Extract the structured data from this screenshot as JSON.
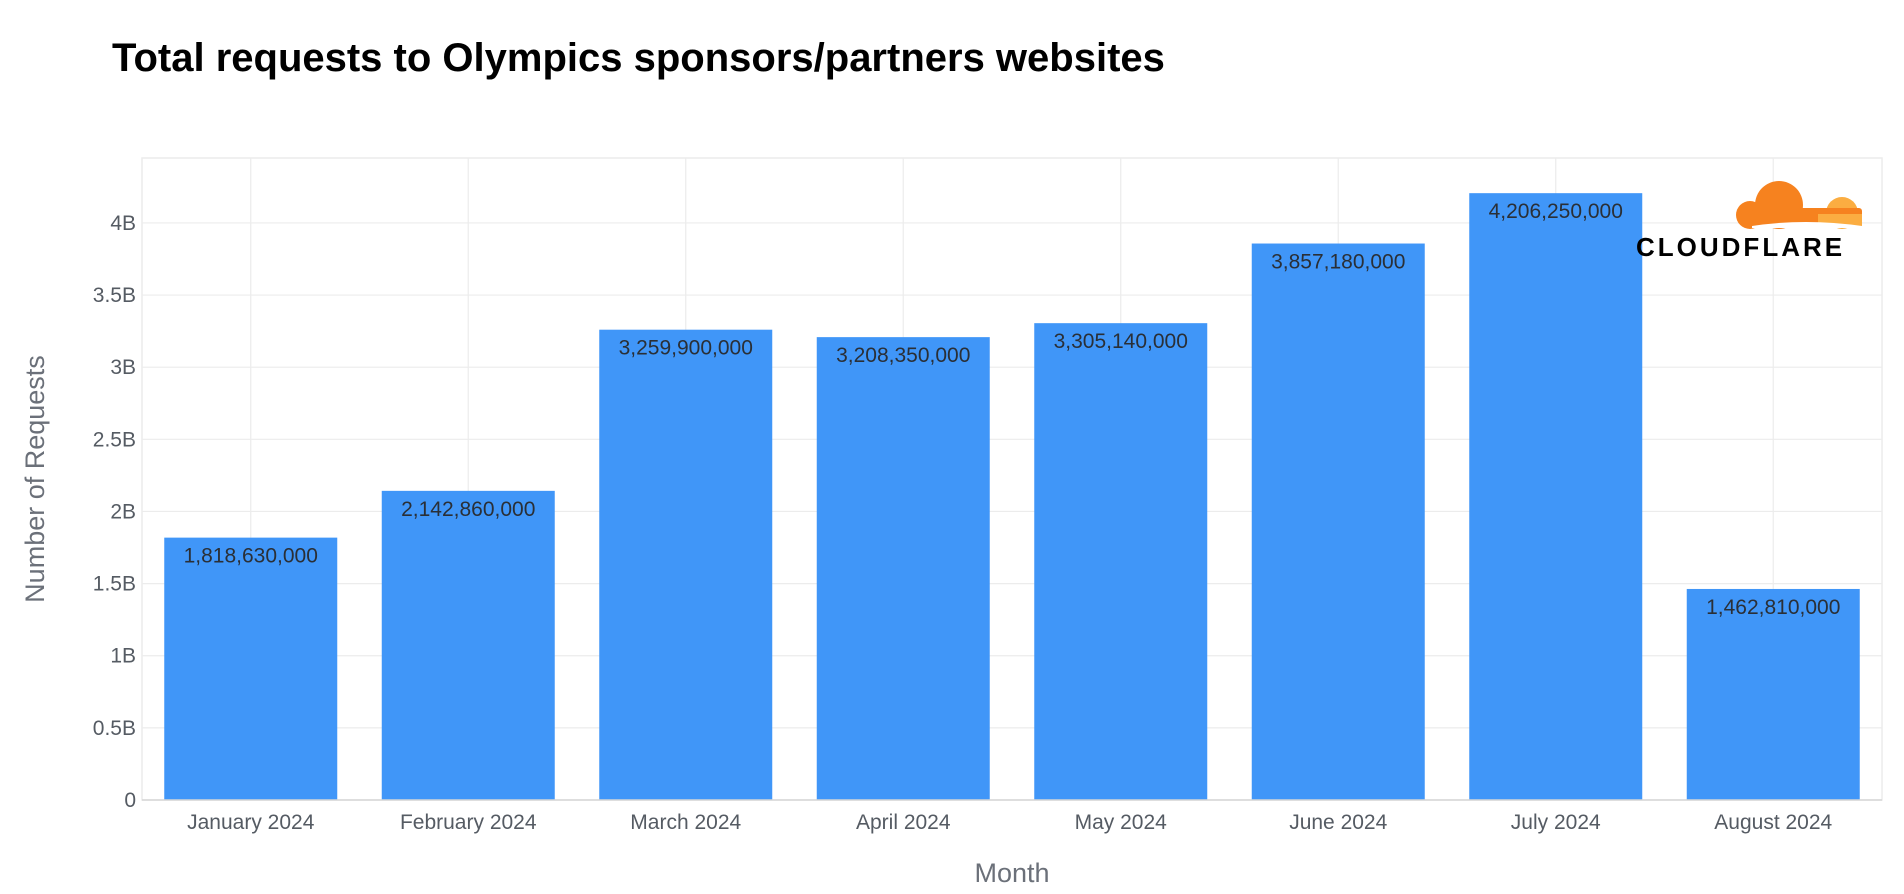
{
  "chart_data": {
    "type": "bar",
    "title": "Total requests to Olympics sponsors/partners websites",
    "xlabel": "Month",
    "ylabel": "Number of Requests",
    "categories": [
      "January 2024",
      "February 2024",
      "March 2024",
      "April 2024",
      "May 2024",
      "June 2024",
      "July 2024",
      "August 2024"
    ],
    "values": [
      1818630000,
      2142860000,
      3259900000,
      3208350000,
      3305140000,
      3857180000,
      4206250000,
      1462810000
    ],
    "value_labels": [
      "1,818,630,000",
      "2,142,860,000",
      "3,259,900,000",
      "3,208,350,000",
      "3,305,140,000",
      "3,857,180,000",
      "4,206,250,000",
      "1,462,810,000"
    ],
    "ylim": [
      0,
      4450000000
    ],
    "yticks": [
      0,
      500000000,
      1000000000,
      1500000000,
      2000000000,
      2500000000,
      3000000000,
      3500000000,
      4000000000
    ],
    "ytick_labels": [
      "0",
      "0.5B",
      "1B",
      "1.5B",
      "2B",
      "2.5B",
      "3B",
      "3.5B",
      "4B"
    ],
    "grid": true,
    "bar_color": "#4096f8"
  },
  "logo": {
    "text": "CLOUDFLARE",
    "icon": "cloud-icon",
    "colors": [
      "#f6821f",
      "#fbad41"
    ]
  }
}
